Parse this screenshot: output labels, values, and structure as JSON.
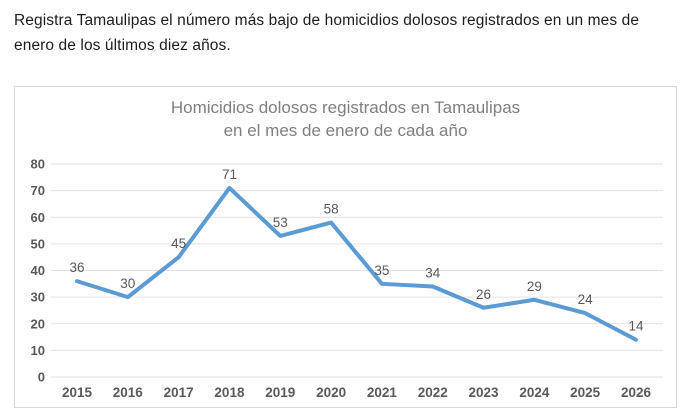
{
  "page": {
    "headline": "Registra Tamaulipas el número más bajo de homicidios dolosos registrados en un mes de\nenero de los últimos diez años."
  },
  "chart_data": {
    "type": "line",
    "title_line1": "Homicidios dolosos registrados en Tamaulipas",
    "title_line2": "en el mes de enero de cada año",
    "categories": [
      "2015",
      "2016",
      "2017",
      "2018",
      "2019",
      "2020",
      "2021",
      "2022",
      "2023",
      "2024",
      "2025",
      "2026"
    ],
    "values": [
      36,
      30,
      45,
      71,
      53,
      58,
      35,
      34,
      26,
      29,
      24,
      14
    ],
    "xlabel": "",
    "ylabel": "",
    "ylim": [
      0,
      80
    ],
    "ytick_step": 10,
    "grid": true,
    "legend_position": "none",
    "data_labels": true,
    "colors": {
      "line": "#5b9bd5",
      "grid": "#e2e2e2",
      "title": "#7f7f7f",
      "axis_text": "#595959",
      "data_label": "#595959",
      "headline_text": "#1c1c1c",
      "chart_border": "#d8d8d8",
      "background": "#ffffff"
    }
  }
}
